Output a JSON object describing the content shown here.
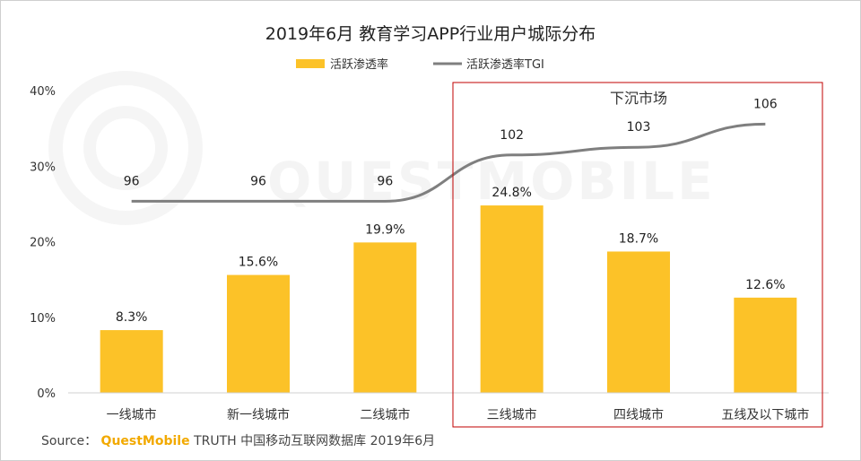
{
  "chart_data": {
    "type": "bar",
    "title": "2019年6月 教育学习APP行业用户城际分布",
    "categories": [
      "一线城市",
      "新一线城市",
      "二线城市",
      "三线城市",
      "四线城市",
      "五线及以下城市"
    ],
    "series": [
      {
        "name": "活跃渗透率",
        "type": "bar",
        "values": [
          8.3,
          15.6,
          19.9,
          24.8,
          18.7,
          12.6
        ],
        "labels": [
          "8.3%",
          "15.6%",
          "19.9%",
          "24.8%",
          "18.7%",
          "12.6%"
        ],
        "color": "#FCC228"
      },
      {
        "name": "活跃渗透率TGI",
        "type": "line",
        "values": [
          96,
          96,
          96,
          102,
          103,
          106
        ],
        "color": "#7F7F7F"
      }
    ],
    "ylim": [
      0,
      40
    ],
    "yticks": [
      "0%",
      "10%",
      "20%",
      "30%",
      "40%"
    ],
    "yticks_values": [
      0,
      10,
      20,
      30,
      40
    ],
    "legend_position": "top-center",
    "highlight": {
      "label": "下沉市场",
      "categories": [
        "三线城市",
        "四线城市",
        "五线及以下城市"
      ],
      "color": "#C00000"
    }
  },
  "watermark": "QUESTMOBILE",
  "source": {
    "prefix": "Source：",
    "brand": "QuestMobile",
    "text": " TRUTH 中国移动互联网数据库 2019年6月"
  }
}
